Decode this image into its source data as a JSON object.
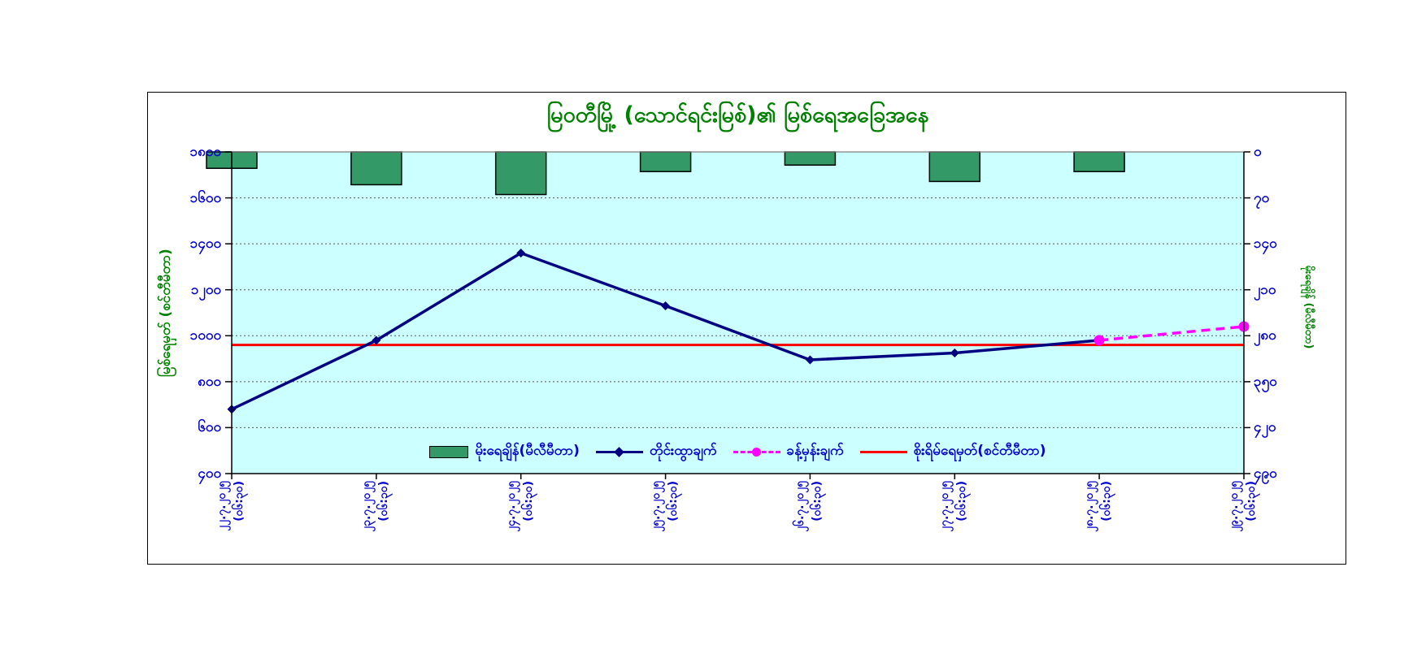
{
  "page": {
    "background": "#FFFFFF"
  },
  "figure": {
    "border_color": "#000000",
    "background": "#FFFFFF"
  },
  "chart_data": {
    "type": "combo",
    "title": "မြဝတီမြို့ (သောင်ရင်းမြစ်)၏ မြစ်ရေအခြေအနေ",
    "title_color": "#008000",
    "plot_background": "#CCFFFF",
    "grid": true,
    "legend_position": "bottom-inside",
    "categories": [
      "၂၂.၇.၂၀၂၅",
      "၂၃.၇.၂၀၂၅",
      "၂၄.၇.၂၀၂၅",
      "၂၅.၇.၂၀၂၅",
      "၂၆.၇.၂၀၂၅",
      "၂၇.၇.၂၀၂၅",
      "၂၈.၇.၂၀၂၅",
      "၂၉.၇.၂၀၂၅"
    ],
    "categories_latin": [
      "22.7.2025",
      "23.7.2025",
      "24.7.2025",
      "25.7.2025",
      "26.7.2025",
      "27.7.2025",
      "28.7.2025",
      "29.7.2025"
    ],
    "category_time": "(၀၆:၃၀)",
    "category_time_latin": "(06:30)",
    "left_axis": {
      "title": "မြစ်ရေမှတ် (စင်တီမီတာ)",
      "min": 400,
      "max": 1800,
      "step": 200,
      "tick_values": [
        1800,
        1600,
        1400,
        1200,
        1000,
        800,
        600,
        400
      ],
      "ticks": [
        "၁၈၀၀",
        "၁၆၀၀",
        "၁၄၀၀",
        "၁၂၀၀",
        "၁၀၀၀",
        "၈၀၀",
        "၆၀၀",
        "၄၀၀"
      ]
    },
    "right_axis": {
      "title": "မိုးရေချိန် (မီလီမီတာ)",
      "min": 0,
      "max": 490,
      "step": 70,
      "direction": "top-down",
      "tick_values": [
        0,
        70,
        140,
        210,
        280,
        350,
        420,
        490
      ],
      "ticks": [
        "၀",
        "၇၀",
        "၁၄၀",
        "၂၁၀",
        "၂၈၀",
        "၃၅၀",
        "၄၂၀",
        "၄၉၀"
      ]
    },
    "series": [
      {
        "name": "မိုးရေချိန်(မီလီမီတာ)",
        "type": "bar",
        "axis": "right",
        "color": "#339966",
        "values": [
          25,
          50,
          65,
          30,
          20,
          45,
          30,
          null
        ]
      },
      {
        "name": "တိုင်းထွာချက်",
        "type": "line",
        "axis": "left",
        "color": "#000080",
        "marker": "diamond",
        "values": [
          680,
          980,
          1360,
          1130,
          895,
          925,
          980,
          null
        ]
      },
      {
        "name": "ခန့်မှန်းချက်",
        "type": "line",
        "axis": "left",
        "color": "#FF00FF",
        "dash": true,
        "marker": "circle",
        "values": [
          null,
          null,
          null,
          null,
          null,
          null,
          980,
          1040
        ]
      },
      {
        "name": "စိုးရိမ်ရေမှတ်(စင်တီမီတာ)",
        "type": "hline",
        "axis": "left",
        "color": "#FF0000",
        "value": 960
      }
    ]
  },
  "legend": {
    "items": [
      {
        "label": "မိုးရေချိန်(မီလီမီတာ)",
        "swatch": "green-bar"
      },
      {
        "label": "တိုင်းထွာချက်",
        "swatch": "navy-line-diamond"
      },
      {
        "label": "ခန့်မှန်းချက်",
        "swatch": "magenta-dashed-dot"
      },
      {
        "label": "စိုးရိမ်ရေမှတ်(စင်တီမီတာ)",
        "swatch": "red-line"
      }
    ]
  }
}
